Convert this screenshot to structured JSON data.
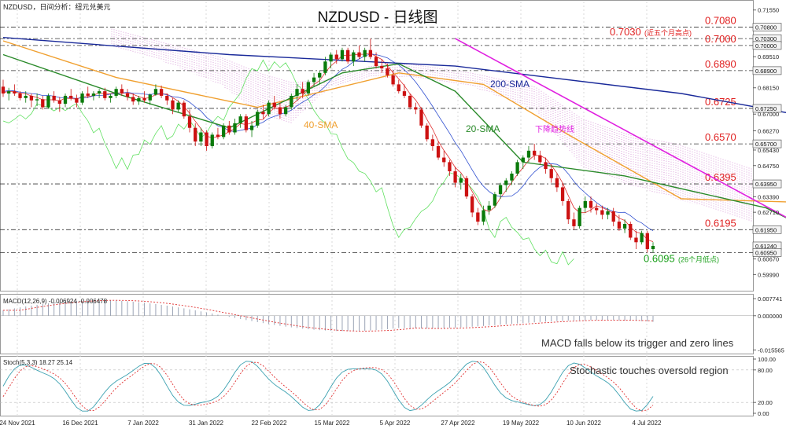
{
  "chart_data": [
    {
      "type": "candlestick",
      "symbol_label": "NZDUSD，日间分析：纽元兑美元",
      "title": "NZDUSD - 日线图",
      "ylim": [
        0.5935,
        0.7185
      ],
      "y_ticks": [
        "0.71550",
        "0.70800",
        "0.70300",
        "0.70000",
        "0.69510",
        "0.68900",
        "0.68150",
        "0.67250",
        "0.67000",
        "0.66270",
        "0.65700",
        "0.65430",
        "0.64750",
        "0.63950",
        "0.63390",
        "0.62710",
        "0.61950",
        "0.61240",
        "0.60950",
        "0.60670",
        "0.59990"
      ],
      "x_ticks": [
        "24 Nov 2021",
        "16 Dec 2021",
        "7 Jan 2022",
        "31 Jan 2022",
        "22 Feb 2022",
        "15 Mar 2022",
        "5 Apr 2022",
        "27 Apr 2022",
        "19 May 2022",
        "10 Jun 2022",
        "4 Jul 2022"
      ],
      "levels": [
        {
          "value": 0.708,
          "label": "0.7080",
          "note": ""
        },
        {
          "value": 0.703,
          "label": "0.7030",
          "note": "(近五个月高点)"
        },
        {
          "value": 0.7,
          "label": "0.7000",
          "note": ""
        },
        {
          "value": 0.689,
          "label": "0.6890",
          "note": ""
        },
        {
          "value": 0.6725,
          "label": "0.6725",
          "note": ""
        },
        {
          "value": 0.657,
          "label": "0.6570",
          "note": ""
        },
        {
          "value": 0.6395,
          "label": "0.6395",
          "note": ""
        },
        {
          "value": 0.6195,
          "label": "0.6195",
          "note": ""
        },
        {
          "value": 0.6095,
          "label": "0.6095",
          "note": "(26个月低点)"
        }
      ],
      "price_badges": [
        "0.70800",
        "0.70300",
        "0.70000",
        "0.68900",
        "0.67250",
        "0.65700",
        "0.63950",
        "0.61950",
        "0.61240",
        "0.60950"
      ],
      "annotations": {
        "sma200": "200-SMA",
        "sma40": "40-SMA",
        "sma20": "20-SMA",
        "trendline": "下降趋势线"
      },
      "colors": {
        "up": "#0a7a0a",
        "down": "#cc1111",
        "sma200": "#1a2a9a",
        "sma40": "#f0a030",
        "sma20": "#2a8a2a",
        "trendline": "#e020e0",
        "level_text": "#e02020",
        "low_text": "#1aa01a",
        "cloud": "#c060c0",
        "tenkan": "#e03030",
        "kijun": "#3050d0",
        "chikou": "#60e060"
      },
      "candles": [
        [
          0.682,
          0.685,
          0.6775,
          0.679
        ],
        [
          0.679,
          0.6815,
          0.676,
          0.68
        ],
        [
          0.68,
          0.683,
          0.678,
          0.679
        ],
        [
          0.679,
          0.68,
          0.676,
          0.677
        ],
        [
          0.677,
          0.68,
          0.675,
          0.678
        ],
        [
          0.678,
          0.679,
          0.673,
          0.676
        ],
        [
          0.676,
          0.679,
          0.6735,
          0.6765
        ],
        [
          0.6765,
          0.678,
          0.672,
          0.673
        ],
        [
          0.673,
          0.679,
          0.6725,
          0.678
        ],
        [
          0.678,
          0.68,
          0.675,
          0.676
        ],
        [
          0.676,
          0.6775,
          0.671,
          0.6745
        ],
        [
          0.6745,
          0.679,
          0.673,
          0.678
        ],
        [
          0.678,
          0.681,
          0.676,
          0.677
        ],
        [
          0.677,
          0.6785,
          0.673,
          0.675
        ],
        [
          0.675,
          0.68,
          0.674,
          0.679
        ],
        [
          0.679,
          0.682,
          0.677,
          0.678
        ],
        [
          0.678,
          0.68,
          0.676,
          0.679
        ],
        [
          0.679,
          0.681,
          0.677,
          0.68
        ],
        [
          0.68,
          0.6815,
          0.676,
          0.677
        ],
        [
          0.677,
          0.679,
          0.675,
          0.678
        ],
        [
          0.678,
          0.682,
          0.677,
          0.681
        ],
        [
          0.681,
          0.683,
          0.678,
          0.679
        ],
        [
          0.679,
          0.681,
          0.676,
          0.6775
        ],
        [
          0.6775,
          0.679,
          0.674,
          0.6755
        ],
        [
          0.6755,
          0.678,
          0.674,
          0.677
        ],
        [
          0.677,
          0.68,
          0.675,
          0.676
        ],
        [
          0.676,
          0.679,
          0.674,
          0.6785
        ],
        [
          0.6785,
          0.683,
          0.678,
          0.681
        ],
        [
          0.681,
          0.6825,
          0.677,
          0.678
        ],
        [
          0.678,
          0.679,
          0.674,
          0.676
        ],
        [
          0.676,
          0.677,
          0.67,
          0.672
        ],
        [
          0.672,
          0.676,
          0.671,
          0.675
        ],
        [
          0.675,
          0.676,
          0.668,
          0.669
        ],
        [
          0.669,
          0.672,
          0.662,
          0.664
        ],
        [
          0.664,
          0.666,
          0.656,
          0.658
        ],
        [
          0.658,
          0.664,
          0.656,
          0.662
        ],
        [
          0.662,
          0.663,
          0.654,
          0.656
        ],
        [
          0.656,
          0.662,
          0.655,
          0.661
        ],
        [
          0.661,
          0.664,
          0.659,
          0.66
        ],
        [
          0.66,
          0.666,
          0.659,
          0.665
        ],
        [
          0.665,
          0.667,
          0.661,
          0.662
        ],
        [
          0.662,
          0.668,
          0.661,
          0.666
        ],
        [
          0.666,
          0.67,
          0.664,
          0.669
        ],
        [
          0.669,
          0.67,
          0.662,
          0.663
        ],
        [
          0.663,
          0.667,
          0.66,
          0.665
        ],
        [
          0.665,
          0.672,
          0.664,
          0.671
        ],
        [
          0.671,
          0.674,
          0.668,
          0.67
        ],
        [
          0.67,
          0.676,
          0.669,
          0.675
        ],
        [
          0.675,
          0.678,
          0.672,
          0.673
        ],
        [
          0.673,
          0.675,
          0.668,
          0.67
        ],
        [
          0.67,
          0.674,
          0.669,
          0.673
        ],
        [
          0.673,
          0.679,
          0.672,
          0.678
        ],
        [
          0.678,
          0.683,
          0.676,
          0.681
        ],
        [
          0.681,
          0.684,
          0.677,
          0.679
        ],
        [
          0.679,
          0.685,
          0.678,
          0.684
        ],
        [
          0.684,
          0.688,
          0.682,
          0.686
        ],
        [
          0.686,
          0.689,
          0.683,
          0.688
        ],
        [
          0.688,
          0.695,
          0.687,
          0.693
        ],
        [
          0.693,
          0.697,
          0.69,
          0.696
        ],
        [
          0.696,
          0.698,
          0.692,
          0.694
        ],
        [
          0.694,
          0.699,
          0.693,
          0.698
        ],
        [
          0.698,
          0.699,
          0.692,
          0.693
        ],
        [
          0.693,
          0.698,
          0.691,
          0.697
        ],
        [
          0.697,
          0.7,
          0.694,
          0.695
        ],
        [
          0.695,
          0.699,
          0.693,
          0.698
        ],
        [
          0.698,
          0.703,
          0.694,
          0.695
        ],
        [
          0.695,
          0.697,
          0.69,
          0.691
        ],
        [
          0.691,
          0.694,
          0.688,
          0.69
        ],
        [
          0.69,
          0.692,
          0.686,
          0.687
        ],
        [
          0.687,
          0.689,
          0.682,
          0.683
        ],
        [
          0.683,
          0.685,
          0.679,
          0.68
        ],
        [
          0.68,
          0.683,
          0.677,
          0.678
        ],
        [
          0.678,
          0.679,
          0.672,
          0.673
        ],
        [
          0.673,
          0.675,
          0.67,
          0.672
        ],
        [
          0.672,
          0.673,
          0.664,
          0.665
        ],
        [
          0.665,
          0.666,
          0.658,
          0.659
        ],
        [
          0.659,
          0.661,
          0.654,
          0.656
        ],
        [
          0.656,
          0.658,
          0.65,
          0.651
        ],
        [
          0.651,
          0.654,
          0.647,
          0.649
        ],
        [
          0.649,
          0.65,
          0.643,
          0.645
        ],
        [
          0.645,
          0.647,
          0.638,
          0.64
        ],
        [
          0.64,
          0.644,
          0.637,
          0.642
        ],
        [
          0.642,
          0.643,
          0.633,
          0.634
        ],
        [
          0.634,
          0.635,
          0.625,
          0.627
        ],
        [
          0.627,
          0.629,
          0.6215,
          0.623
        ],
        [
          0.623,
          0.63,
          0.6215,
          0.628
        ],
        [
          0.628,
          0.632,
          0.626,
          0.63
        ],
        [
          0.63,
          0.636,
          0.629,
          0.635
        ],
        [
          0.635,
          0.64,
          0.633,
          0.639
        ],
        [
          0.639,
          0.642,
          0.636,
          0.641
        ],
        [
          0.641,
          0.645,
          0.639,
          0.644
        ],
        [
          0.644,
          0.65,
          0.643,
          0.649
        ],
        [
          0.649,
          0.652,
          0.646,
          0.651
        ],
        [
          0.651,
          0.656,
          0.649,
          0.654
        ],
        [
          0.654,
          0.657,
          0.65,
          0.652
        ],
        [
          0.652,
          0.654,
          0.648,
          0.649
        ],
        [
          0.649,
          0.651,
          0.644,
          0.646
        ],
        [
          0.646,
          0.648,
          0.64,
          0.642
        ],
        [
          0.642,
          0.644,
          0.636,
          0.638
        ],
        [
          0.638,
          0.64,
          0.63,
          0.632
        ],
        [
          0.632,
          0.633,
          0.622,
          0.624
        ],
        [
          0.624,
          0.627,
          0.6195,
          0.621
        ],
        [
          0.621,
          0.63,
          0.62,
          0.629
        ],
        [
          0.629,
          0.634,
          0.627,
          0.632
        ],
        [
          0.632,
          0.634,
          0.627,
          0.629
        ],
        [
          0.629,
          0.631,
          0.626,
          0.628
        ],
        [
          0.628,
          0.63,
          0.624,
          0.626
        ],
        [
          0.626,
          0.629,
          0.624,
          0.6275
        ],
        [
          0.6275,
          0.629,
          0.621,
          0.623
        ],
        [
          0.623,
          0.626,
          0.619,
          0.62
        ],
        [
          0.62,
          0.624,
          0.618,
          0.622
        ],
        [
          0.622,
          0.623,
          0.615,
          0.616
        ],
        [
          0.616,
          0.619,
          0.611,
          0.614
        ],
        [
          0.614,
          0.619,
          0.613,
          0.618
        ],
        [
          0.618,
          0.619,
          0.6095,
          0.611
        ],
        [
          0.611,
          0.614,
          0.6095,
          0.6124
        ]
      ],
      "indicator_lines": {
        "sma200": [
          [
            0,
            0.7035
          ],
          [
            40,
            0.696
          ],
          [
            80,
            0.691
          ],
          [
            120,
            0.679
          ],
          [
            140,
            0.67
          ]
        ],
        "sma40": [
          [
            0,
            0.702
          ],
          [
            20,
            0.686
          ],
          [
            45,
            0.673
          ],
          [
            70,
            0.688
          ],
          [
            85,
            0.683
          ],
          [
            100,
            0.661
          ],
          [
            120,
            0.633
          ],
          [
            140,
            0.6315
          ]
        ],
        "sma20": [
          [
            0,
            0.696
          ],
          [
            20,
            0.679
          ],
          [
            40,
            0.664
          ],
          [
            60,
            0.688
          ],
          [
            70,
            0.692
          ],
          [
            80,
            0.68
          ],
          [
            92,
            0.649
          ],
          [
            110,
            0.643
          ],
          [
            135,
            0.629
          ],
          [
            140,
            0.623
          ]
        ],
        "trendline": [
          [
            80,
            0.703
          ],
          [
            155,
            0.603
          ]
        ]
      }
    },
    {
      "type": "line",
      "label": "MACD(12,26,9) -0.006924 -0.006478",
      "ylim": [
        -0.0165,
        0.0085
      ],
      "y_ticks": [
        "0.007741",
        "0.000000",
        "-0.015565"
      ],
      "annotation": "MACD falls below its trigger and zero lines"
    },
    {
      "type": "line",
      "label": "Stoch(5,3,3) 18.27 25.14",
      "ylim": [
        0,
        100
      ],
      "y_ticks": [
        "100.00",
        "80.00",
        "20.00",
        "0.00"
      ],
      "annotation": "Stochastic touches oversold region"
    }
  ]
}
